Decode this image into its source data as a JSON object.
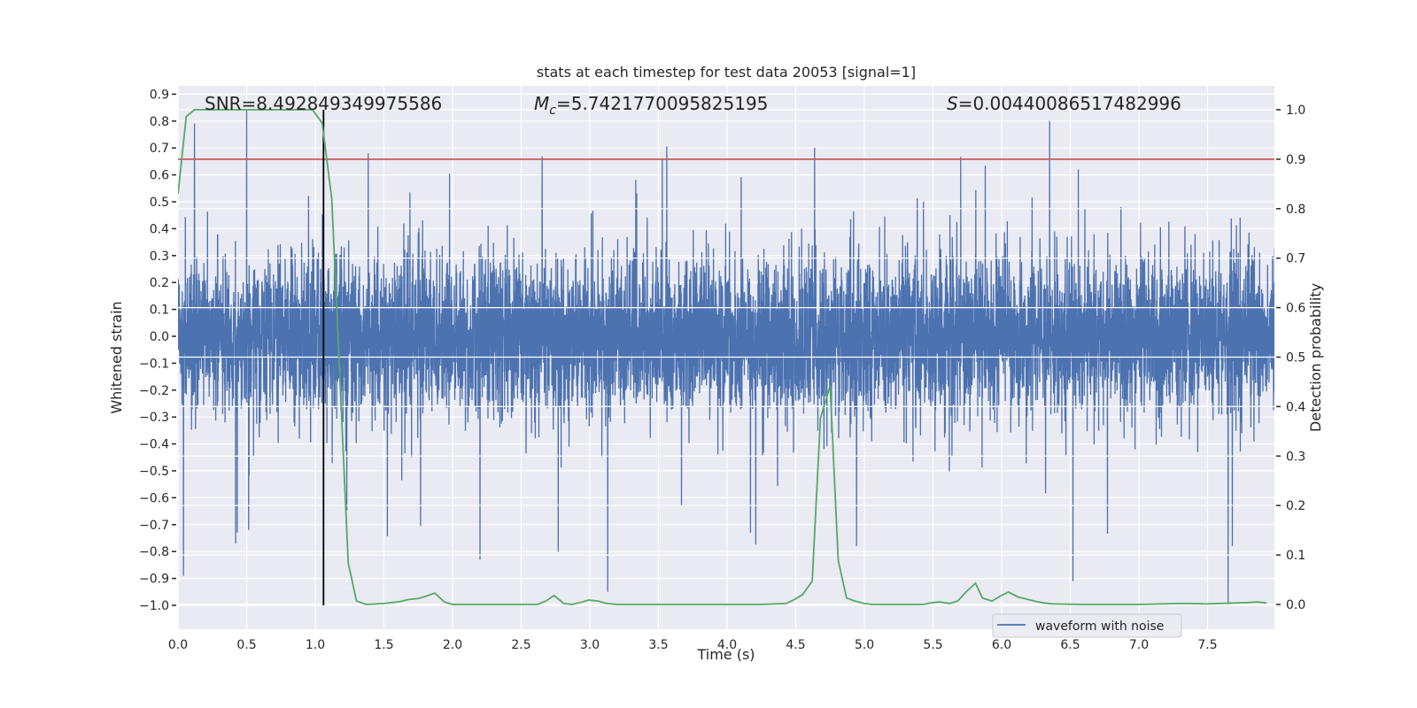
{
  "chart_data": {
    "type": "line",
    "title": "stats at each timestep for test data 20053 [signal=1]",
    "xlabel": "Time (s)",
    "ylabel": "Whitened strain",
    "ylabel_right": "Detection probability",
    "xlim": [
      0,
      7.99
    ],
    "ylim": [
      -1.09,
      0.93
    ],
    "ylim_right": [
      -0.05,
      1.048
    ],
    "grid": true,
    "x_ticks": [
      "0.0",
      "0.5",
      "1.0",
      "1.5",
      "2.0",
      "2.5",
      "3.0",
      "3.5",
      "4.0",
      "4.5",
      "5.0",
      "5.5",
      "6.0",
      "6.5",
      "7.0",
      "7.5"
    ],
    "y_ticks": [
      "0.9",
      "0.8",
      "0.7",
      "0.6",
      "0.5",
      "0.4",
      "0.3",
      "0.2",
      "0.1",
      "0.0",
      "−0.1",
      "−0.2",
      "−0.3",
      "−0.4",
      "−0.5",
      "−0.6",
      "−0.7",
      "−0.8",
      "−0.9",
      "−1.0"
    ],
    "y_ticks_right": [
      "0.0",
      "0.1",
      "0.2",
      "0.3",
      "0.4",
      "0.5",
      "0.6",
      "0.7",
      "0.8",
      "0.9",
      "1.0"
    ],
    "annotations": {
      "snr": "SNR=8.492849349975586",
      "mc_symbol": "M",
      "mc_sub": "c",
      "mc_value": "=5.7421770095825195",
      "s_symbol": "S",
      "s_value": "=0.00440086517482996"
    },
    "legend": {
      "position": "lower-right",
      "entries": [
        "waveform with noise"
      ]
    },
    "colors": {
      "waveform": "#4C72B0",
      "probability": "#55A868",
      "threshold": "#C44E52",
      "marker": "#000000",
      "background": "#EAEAF2"
    },
    "threshold": 0.9,
    "marker_time": 1.06,
    "waveform": {
      "name": "waveform with noise",
      "noise_sigma": 0.14,
      "notable_peaks": [
        [
          0.04,
          -0.89
        ],
        [
          0.12,
          0.79
        ],
        [
          0.5,
          0.84
        ],
        [
          0.42,
          -0.77
        ],
        [
          2.2,
          -0.83
        ],
        [
          2.77,
          -0.8
        ],
        [
          3.13,
          -0.95
        ],
        [
          4.17,
          -0.73
        ],
        [
          6.35,
          0.8
        ],
        [
          6.52,
          -0.91
        ],
        [
          7.65,
          -1.0
        ]
      ]
    },
    "probability": {
      "name": "detection probability",
      "points": [
        [
          0,
          0.83
        ],
        [
          0.06,
          0.986
        ],
        [
          0.12,
          1.0
        ],
        [
          0.98,
          1.0
        ],
        [
          1.05,
          0.973
        ],
        [
          1.12,
          0.82
        ],
        [
          1.24,
          0.084
        ],
        [
          1.3,
          0.007
        ],
        [
          1.37,
          0.0
        ],
        [
          1.5,
          0.002
        ],
        [
          1.56,
          0.004
        ],
        [
          1.62,
          0.006
        ],
        [
          1.68,
          0.01
        ],
        [
          1.75,
          0.012
        ],
        [
          1.81,
          0.017
        ],
        [
          1.87,
          0.023
        ],
        [
          1.94,
          0.005
        ],
        [
          2.0,
          0.0
        ],
        [
          2.62,
          0.0
        ],
        [
          2.68,
          0.007
        ],
        [
          2.74,
          0.018
        ],
        [
          2.81,
          0.002
        ],
        [
          2.87,
          0.0
        ],
        [
          2.93,
          0.004
        ],
        [
          2.99,
          0.009
        ],
        [
          3.06,
          0.007
        ],
        [
          3.12,
          0.002
        ],
        [
          3.2,
          0.0
        ],
        [
          4.25,
          0.0
        ],
        [
          4.43,
          0.002
        ],
        [
          4.49,
          0.01
        ],
        [
          4.55,
          0.02
        ],
        [
          4.62,
          0.047
        ],
        [
          4.68,
          0.376
        ],
        [
          4.75,
          0.442
        ],
        [
          4.81,
          0.089
        ],
        [
          4.87,
          0.013
        ],
        [
          4.93,
          0.007
        ],
        [
          5.0,
          0.002
        ],
        [
          5.06,
          0.0
        ],
        [
          5.43,
          0.0
        ],
        [
          5.5,
          0.004
        ],
        [
          5.55,
          0.005
        ],
        [
          5.62,
          0.002
        ],
        [
          5.68,
          0.007
        ],
        [
          5.74,
          0.025
        ],
        [
          5.81,
          0.043
        ],
        [
          5.86,
          0.013
        ],
        [
          5.93,
          0.007
        ],
        [
          5.99,
          0.017
        ],
        [
          6.05,
          0.025
        ],
        [
          6.12,
          0.015
        ],
        [
          6.18,
          0.011
        ],
        [
          6.25,
          0.006
        ],
        [
          6.31,
          0.003
        ],
        [
          6.37,
          0.001
        ],
        [
          6.6,
          0.0
        ],
        [
          7.0,
          0.0
        ],
        [
          7.3,
          0.002
        ],
        [
          7.5,
          0.001
        ],
        [
          7.8,
          0.004
        ],
        [
          7.86,
          0.005
        ],
        [
          7.93,
          0.003
        ]
      ]
    }
  }
}
